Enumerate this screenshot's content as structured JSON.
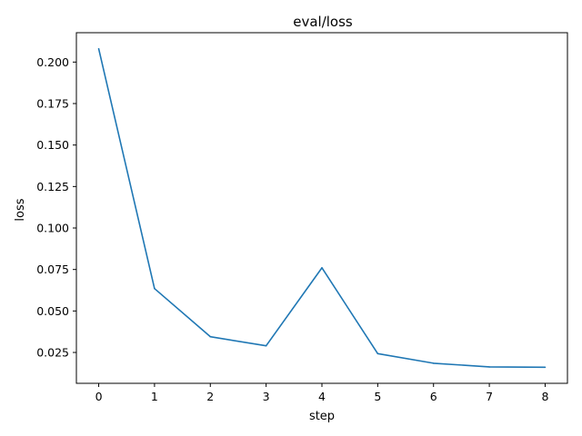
{
  "chart_data": {
    "type": "line",
    "title": "eval/loss",
    "xlabel": "step",
    "ylabel": "loss",
    "x": [
      0,
      1,
      2,
      3,
      4,
      5,
      6,
      7,
      8
    ],
    "series": [
      {
        "values": [
          0.208,
          0.0635,
          0.0345,
          0.029,
          0.076,
          0.0243,
          0.0185,
          0.0163,
          0.0161
        ]
      }
    ],
    "xlim": [
      -0.4,
      8.4
    ],
    "ylim": [
      0.0064,
      0.2177
    ],
    "x_ticks": [
      0,
      1,
      2,
      3,
      4,
      5,
      6,
      7,
      8
    ],
    "y_ticks": [
      0.025,
      0.05,
      0.075,
      0.1,
      0.125,
      0.15,
      0.175,
      0.2
    ],
    "y_tick_labels": [
      "0.025",
      "0.050",
      "0.075",
      "0.100",
      "0.125",
      "0.150",
      "0.175",
      "0.200"
    ],
    "grid": false,
    "legend": false,
    "colors": {
      "line": "#1f77b4",
      "axes": "#000000"
    }
  }
}
